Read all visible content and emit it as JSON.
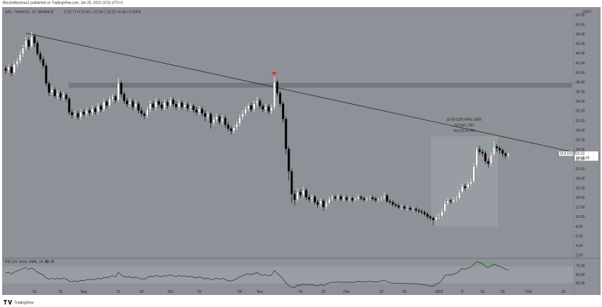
{
  "header": "BitcoinMaximus1 published on TradingView.com, Jan 25, 2023 10:01 UTC+1",
  "footer": "TradingView",
  "chart_data": [
    {
      "type": "candlestick",
      "title": "SOL / TetherUS, 1D, BINANCE",
      "legend_text": "O 22.77 H 23.43 L 22.24 C 23.22 +0.44 (+1.93%)",
      "axis_unit": "USDT",
      "up_color": "#ffffff",
      "down_color": "#000000",
      "last_price": {
        "symbol": "SOLUSDT",
        "value": 23.22,
        "countdown": "14:58:25"
      },
      "annotations": [
        "18.55 (226.64%) 1855",
        "23 bars, 23d",
        "Vol 231.475M"
      ],
      "categories": [
        null,
        null,
        null,
        null,
        null,
        null,
        null,
        null,
        null,
        null,
        "15",
        null,
        null,
        null,
        null,
        null,
        null,
        null,
        null,
        "22",
        null,
        null,
        null,
        null,
        null,
        null,
        null,
        "Sep",
        null,
        null,
        null,
        null,
        null,
        null,
        null,
        null,
        null,
        null,
        null,
        "12",
        null,
        null,
        null,
        null,
        null,
        null,
        null,
        "20",
        null,
        null,
        null,
        null,
        null,
        null,
        null,
        null,
        null,
        "Oct",
        null,
        null,
        null,
        null,
        null,
        null,
        null,
        null,
        null,
        "10",
        null,
        null,
        null,
        null,
        null,
        null,
        null,
        null,
        null,
        null,
        null,
        null,
        null,
        "24",
        null,
        null,
        null,
        null,
        null,
        null,
        "Nov",
        null,
        null,
        null,
        null,
        null,
        null,
        null,
        null,
        null,
        null,
        null,
        null,
        null,
        "14",
        null,
        null,
        null,
        null,
        null,
        null,
        null,
        "22",
        null,
        null,
        null,
        null,
        null,
        null,
        null,
        "Dec",
        null,
        null,
        null,
        null,
        null,
        null,
        null,
        null,
        null,
        null,
        null,
        "12",
        null,
        null,
        null,
        null,
        null,
        null,
        null,
        "20",
        null,
        null,
        null,
        null,
        null,
        null,
        null,
        null,
        null,
        null,
        null,
        "2023",
        null,
        null,
        null,
        null,
        null,
        null,
        null,
        "9",
        null,
        null,
        null,
        null,
        null,
        null,
        "16",
        null,
        null,
        null,
        null,
        null,
        null,
        "23",
        null,
        null,
        null,
        null,
        null,
        null,
        null,
        null,
        "Feb",
        null,
        null,
        null,
        null,
        null,
        null,
        null,
        null,
        null,
        null,
        null,
        "13",
        null,
        null
      ],
      "open": [
        40.9,
        40.5,
        41.2,
        40.0,
        41.8,
        42.5,
        43.9,
        45.2,
        46.8,
        45.5,
        47.6,
        46.2,
        44.0,
        42.8,
        41.5,
        37.8,
        35.9,
        36.5,
        35.2,
        35.8,
        34.9,
        35.4,
        34.6,
        31.8,
        31.2,
        31.6,
        30.8,
        31.9,
        31.4,
        32.2,
        31.7,
        32.6,
        31.9,
        33.1,
        32.4,
        34.0,
        33.2,
        34.6,
        35.1,
        34.3,
        37.9,
        35.6,
        34.2,
        33.5,
        34.1,
        32.9,
        33.6,
        32.2,
        31.5,
        31.1,
        32.4,
        33.6,
        32.8,
        34.1,
        33.4,
        32.7,
        33.9,
        33.2,
        34.4,
        33.5,
        32.9,
        33.8,
        32.9,
        33.4,
        32.6,
        33.1,
        32.3,
        31.8,
        32.5,
        31.6,
        30.9,
        31.4,
        29.6,
        30.3,
        30.9,
        29.8,
        30.6,
        29.2,
        28.4,
        27.9,
        28.6,
        29.4,
        30.8,
        31.6,
        32.5,
        33.2,
        32.4,
        33.6,
        34.2,
        33.1,
        32.4,
        33.0,
        32.0,
        32.8,
        38.1,
        35.8,
        33.6,
        30.4,
        24.2,
        19.5,
        14.8,
        13.6,
        15.2,
        14.6,
        15.6,
        14.1,
        13.7,
        14.2,
        13.1,
        12.6,
        13.4,
        12.1,
        12.9,
        13.8,
        14.2,
        13.9,
        14.3,
        13.7,
        14.1,
        13.6,
        13.9,
        13.5,
        13.8,
        14.2,
        13.9,
        13.6,
        13.9,
        14.1,
        13.8,
        13.5,
        13.7,
        14.0,
        14.5,
        13.3,
        13.1,
        12.6,
        12.4,
        12.0,
        12.2,
        11.8,
        11.9,
        11.6,
        11.7,
        11.4,
        11.2,
        11.0,
        10.6,
        10.1,
        9.8,
        9.4,
        10.0,
        10.2,
        11.2,
        12.9,
        13.4,
        13.2,
        13.6,
        13.9,
        15.2,
        16.4,
        16.1,
        16.9,
        17.4,
        20.6,
        24.1,
        23.6,
        23.3,
        21.6,
        21.1,
        23.0,
        24.7,
        24.3,
        23.9,
        23.2,
        22.77,
        null,
        null,
        null,
        null,
        null,
        null,
        null,
        null,
        null,
        null,
        null,
        null,
        null,
        null,
        null,
        null,
        null,
        null,
        null,
        null,
        null
      ],
      "high": [
        41.5,
        41.8,
        41.7,
        42.3,
        43.1,
        44.5,
        45.8,
        47.5,
        47.3,
        48.6,
        48.2,
        46.7,
        44.6,
        43.4,
        42.0,
        38.3,
        37.1,
        37.0,
        36.4,
        36.3,
        36.0,
        35.9,
        35.0,
        32.4,
        32.2,
        32.1,
        32.5,
        32.4,
        32.8,
        32.7,
        33.2,
        33.1,
        33.7,
        33.6,
        34.6,
        34.5,
        35.2,
        35.7,
        35.6,
        39.0,
        38.4,
        36.1,
        34.8,
        34.7,
        34.6,
        34.2,
        34.1,
        32.8,
        32.0,
        33.0,
        34.2,
        34.1,
        34.7,
        34.6,
        34.0,
        34.5,
        34.4,
        35.0,
        34.9,
        34.1,
        34.4,
        34.3,
        34.0,
        33.9,
        33.7,
        33.6,
        32.9,
        33.1,
        33.0,
        32.2,
        32.0,
        31.9,
        30.9,
        31.5,
        31.4,
        31.2,
        31.1,
        29.8,
        28.9,
        29.2,
        30.0,
        31.4,
        32.2,
        33.1,
        33.8,
        33.7,
        34.2,
        35.0,
        34.7,
        33.6,
        33.6,
        33.5,
        33.4,
        39.2,
        38.6,
        36.3,
        34.1,
        31.0,
        24.8,
        20.1,
        15.6,
        16.0,
        15.8,
        16.3,
        16.1,
        14.7,
        14.7,
        14.6,
        13.6,
        13.9,
        13.8,
        13.4,
        14.3,
        14.7,
        14.6,
        14.8,
        14.7,
        14.5,
        14.5,
        14.3,
        14.3,
        14.2,
        14.6,
        14.6,
        14.3,
        14.3,
        14.5,
        14.5,
        14.2,
        14.1,
        14.4,
        15.1,
        14.8,
        13.7,
        13.5,
        13.0,
        12.8,
        12.6,
        12.6,
        12.3,
        12.3,
        12.1,
        12.1,
        11.8,
        11.6,
        11.4,
        11.0,
        10.5,
        10.2,
        10.4,
        10.7,
        11.7,
        13.4,
        13.9,
        13.8,
        14.1,
        14.4,
        15.7,
        16.9,
        16.9,
        17.4,
        18.0,
        21.2,
        24.6,
        24.8,
        24.2,
        23.8,
        22.2,
        23.5,
        25.8,
        25.2,
        24.8,
        24.3,
        23.6,
        23.43,
        null,
        null,
        null,
        null,
        null,
        null,
        null,
        null,
        null,
        null,
        null,
        null,
        null,
        null,
        null,
        null,
        null,
        null,
        null,
        null,
        null
      ],
      "low": [
        39.8,
        40.0,
        39.3,
        39.6,
        41.2,
        42.0,
        43.3,
        44.7,
        44.8,
        45.1,
        45.4,
        43.5,
        42.1,
        40.9,
        37.2,
        35.2,
        35.4,
        34.7,
        34.6,
        34.3,
        34.4,
        34.0,
        31.2,
        30.5,
        30.7,
        30.2,
        30.3,
        30.8,
        30.9,
        31.1,
        31.2,
        31.3,
        31.4,
        31.8,
        31.9,
        32.6,
        32.7,
        34.0,
        33.7,
        33.9,
        35.0,
        33.6,
        32.9,
        33.0,
        32.3,
        32.4,
        31.6,
        30.9,
        30.4,
        30.6,
        31.8,
        32.2,
        32.3,
        32.8,
        32.1,
        32.2,
        32.6,
        32.7,
        32.9,
        32.3,
        32.4,
        32.3,
        32.4,
        32.0,
        32.1,
        31.7,
        31.2,
        31.3,
        31.0,
        30.0,
        30.4,
        28.4,
        29.1,
        29.8,
        29.2,
        29.3,
        28.6,
        27.9,
        27.2,
        27.4,
        28.1,
        28.9,
        30.3,
        31.1,
        32.0,
        31.8,
        31.9,
        33.1,
        32.5,
        31.8,
        31.9,
        31.4,
        31.5,
        32.4,
        35.1,
        33.0,
        29.6,
        23.1,
        17.6,
        12.9,
        12.4,
        13.1,
        14.0,
        14.1,
        13.5,
        13.1,
        13.2,
        12.6,
        12.0,
        12.1,
        11.3,
        11.7,
        12.5,
        13.4,
        13.4,
        13.5,
        13.3,
        13.3,
        13.2,
        13.2,
        13.1,
        13.1,
        13.4,
        13.5,
        13.2,
        13.2,
        13.5,
        13.4,
        13.1,
        13.1,
        13.3,
        13.6,
        12.9,
        12.7,
        12.2,
        12.0,
        11.6,
        11.6,
        11.4,
        11.4,
        11.2,
        11.2,
        11.0,
        10.8,
        10.6,
        10.2,
        9.6,
        9.3,
        8.2,
        9.0,
        9.6,
        9.9,
        11.0,
        12.5,
        12.7,
        12.9,
        13.2,
        13.6,
        14.9,
        15.6,
        15.8,
        16.5,
        17.1,
        20.1,
        22.9,
        22.6,
        21.0,
        20.3,
        20.6,
        22.7,
        23.5,
        23.2,
        22.5,
        22.2,
        22.24,
        null,
        null,
        null,
        null,
        null,
        null,
        null,
        null,
        null,
        null,
        null,
        null,
        null,
        null,
        null,
        null,
        null,
        null,
        null,
        null,
        null
      ],
      "close": [
        40.5,
        41.2,
        40.0,
        41.8,
        42.5,
        43.9,
        45.2,
        46.8,
        45.5,
        47.6,
        46.2,
        44.0,
        42.8,
        41.5,
        37.8,
        35.9,
        36.5,
        35.2,
        35.8,
        34.9,
        35.4,
        34.6,
        31.8,
        31.2,
        31.6,
        30.8,
        31.9,
        31.4,
        32.2,
        31.7,
        32.6,
        31.9,
        33.1,
        32.4,
        34.0,
        33.2,
        34.6,
        35.1,
        34.3,
        37.9,
        35.6,
        34.2,
        33.5,
        34.1,
        32.9,
        33.6,
        32.2,
        31.5,
        31.1,
        32.4,
        33.6,
        32.8,
        34.1,
        33.4,
        32.7,
        33.9,
        33.2,
        34.4,
        33.5,
        32.9,
        33.8,
        32.9,
        33.4,
        32.6,
        33.1,
        32.3,
        31.8,
        32.5,
        31.6,
        30.9,
        31.4,
        29.6,
        30.3,
        30.9,
        29.8,
        30.6,
        29.2,
        28.4,
        27.9,
        28.6,
        29.4,
        30.8,
        31.6,
        32.5,
        33.2,
        32.4,
        33.6,
        34.2,
        33.1,
        32.4,
        33.0,
        32.0,
        32.8,
        38.1,
        35.8,
        33.6,
        30.4,
        24.2,
        19.5,
        14.8,
        13.6,
        15.2,
        14.6,
        15.6,
        14.1,
        13.7,
        14.2,
        13.1,
        12.6,
        13.4,
        12.1,
        12.9,
        13.8,
        14.2,
        13.9,
        14.3,
        13.7,
        14.1,
        13.6,
        13.9,
        13.5,
        13.8,
        14.2,
        13.9,
        13.6,
        13.9,
        14.1,
        13.8,
        13.5,
        13.7,
        14.0,
        14.5,
        13.3,
        13.1,
        12.6,
        12.4,
        12.0,
        12.2,
        11.8,
        11.9,
        11.6,
        11.7,
        11.4,
        11.2,
        11.0,
        10.6,
        10.1,
        9.8,
        9.4,
        10.0,
        10.2,
        11.2,
        12.9,
        13.4,
        13.2,
        13.6,
        13.9,
        15.2,
        16.4,
        16.1,
        16.9,
        17.4,
        20.6,
        24.1,
        23.6,
        23.3,
        21.6,
        21.1,
        23.0,
        24.7,
        24.3,
        23.9,
        23.2,
        22.78,
        23.22,
        null,
        null,
        null,
        null,
        null,
        null,
        null,
        null,
        null,
        null,
        null,
        null,
        null,
        null,
        null,
        null,
        null,
        null,
        null,
        null,
        null
      ],
      "ylim": [
        1.6,
        53.4
      ],
      "yticks": [
        {
          "value": 2,
          "label": "2.00"
        },
        {
          "value": 4,
          "label": "4.00"
        },
        {
          "value": 6,
          "label": "6.00"
        },
        {
          "value": 8,
          "label": "8.00"
        },
        {
          "value": 10,
          "label": "10.00"
        },
        {
          "value": 12,
          "label": "12.00"
        },
        {
          "value": 14,
          "label": "14.00"
        },
        {
          "value": 16,
          "label": "16.00"
        },
        {
          "value": 18,
          "label": "18.00"
        },
        {
          "value": 20,
          "label": "20.00"
        },
        {
          "value": 22,
          "label": "22.00"
        },
        {
          "value": 24,
          "label": "24.00"
        },
        {
          "value": 26,
          "label": "26.00"
        },
        {
          "value": 28,
          "label": "28.00"
        },
        {
          "value": 30,
          "label": "30.00"
        },
        {
          "value": 32,
          "label": "32.00"
        },
        {
          "value": 34,
          "label": "34.00"
        },
        {
          "value": 36,
          "label": "36.00"
        },
        {
          "value": 38,
          "label": "38.00"
        },
        {
          "value": 40,
          "label": "40.00"
        },
        {
          "value": 42,
          "label": "42.00"
        },
        {
          "value": 44,
          "label": "44.00"
        },
        {
          "value": 46,
          "label": "46.00"
        },
        {
          "value": 48,
          "label": "48.00"
        },
        {
          "value": 50,
          "label": "50.00"
        },
        {
          "value": 52,
          "label": "52.00"
        }
      ]
    },
    {
      "type": "line",
      "title": "RSI (14, close, SMA, 14, 2)",
      "color": "#2b2b2b",
      "values": [
        55,
        57,
        52,
        58,
        61,
        65,
        68,
        71,
        65,
        70,
        64,
        57,
        53,
        50,
        41,
        37,
        40,
        37,
        40,
        38,
        40,
        38,
        31,
        30,
        32,
        30,
        34,
        33,
        36,
        35,
        38,
        36,
        40,
        38,
        43,
        41,
        45,
        47,
        44,
        57,
        49,
        45,
        43,
        45,
        41,
        44,
        40,
        38,
        37,
        42,
        46,
        44,
        48,
        46,
        44,
        48,
        46,
        50,
        47,
        45,
        48,
        45,
        47,
        44,
        46,
        43,
        41,
        44,
        41,
        38,
        41,
        35,
        38,
        40,
        37,
        40,
        36,
        33,
        32,
        35,
        39,
        44,
        47,
        51,
        53,
        50,
        54,
        56,
        51,
        48,
        50,
        47,
        49,
        62,
        54,
        47,
        38,
        26,
        19,
        14,
        13,
        20,
        19,
        23,
        21,
        20,
        22,
        19,
        18,
        22,
        19,
        23,
        27,
        29,
        28,
        30,
        28,
        29,
        28,
        29,
        28,
        29,
        31,
        30,
        29,
        30,
        31,
        30,
        29,
        30,
        32,
        35,
        29,
        28,
        26,
        26,
        25,
        26,
        24,
        25,
        24,
        25,
        23,
        23,
        22,
        21,
        19,
        18,
        17,
        24,
        26,
        35,
        47,
        51,
        49,
        52,
        54,
        62,
        68,
        65,
        70,
        72,
        81,
        87,
        85,
        83,
        74,
        71,
        76,
        80,
        77,
        74,
        70,
        66,
        63.48,
        null,
        null,
        null,
        null,
        null,
        null,
        null,
        null,
        null,
        null,
        null,
        null,
        null,
        null,
        null,
        null,
        null,
        null,
        null,
        null,
        null
      ],
      "ylim": [
        10,
        96
      ],
      "yticks": [
        {
          "value": 25,
          "label": "25.00"
        },
        {
          "value": 50,
          "label": "50.00"
        },
        {
          "value": 75,
          "label": "75.00"
        }
      ]
    }
  ]
}
